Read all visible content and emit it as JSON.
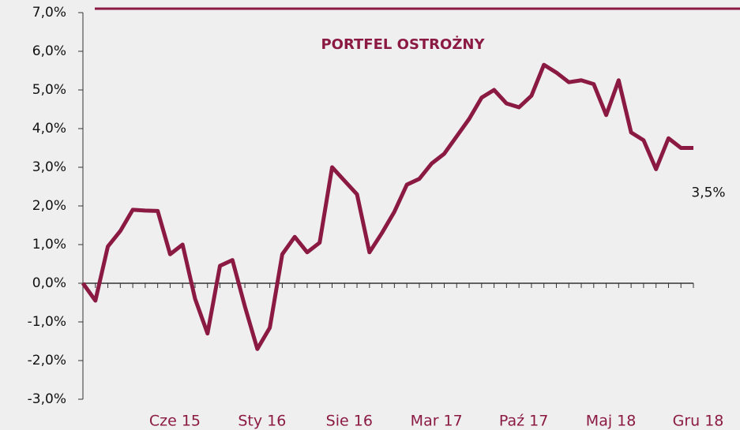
{
  "chart_data": {
    "type": "line",
    "title": "PORTFEL OSTROŻNY",
    "categories": [
      null,
      null,
      null,
      null,
      null,
      null,
      null,
      "Cze 15",
      null,
      null,
      null,
      null,
      null,
      null,
      "Sty 16",
      null,
      null,
      null,
      null,
      null,
      null,
      "Sie 16",
      null,
      null,
      null,
      null,
      null,
      null,
      "Mar 17",
      null,
      null,
      null,
      null,
      null,
      null,
      "Paź 17",
      null,
      null,
      null,
      null,
      null,
      null,
      "Maj 18",
      null,
      null,
      null,
      null,
      null,
      null,
      "Gru 18"
    ],
    "series": [
      {
        "name": "PORTFEL OSTROŻNY",
        "color": "#8b1a42",
        "values": [
          0,
          -0.45,
          0.95,
          1.35,
          1.9,
          1.88,
          1.87,
          0.75,
          1.0,
          -0.4,
          -1.3,
          0.45,
          0.6,
          -0.6,
          -1.7,
          -1.15,
          0.75,
          1.2,
          0.8,
          1.05,
          3.0,
          2.65,
          2.3,
          0.8,
          1.3,
          1.85,
          2.55,
          2.7,
          3.1,
          3.35,
          3.8,
          4.25,
          4.8,
          5.0,
          4.65,
          4.55,
          4.85,
          5.65,
          5.45,
          5.2,
          5.25,
          5.15,
          4.35,
          5.25,
          3.9,
          3.7,
          2.95,
          3.75,
          3.5,
          3.5
        ]
      }
    ],
    "end_label": "3,5%",
    "ylim": [
      -3,
      7
    ],
    "yticks": [
      {
        "value": -3,
        "label": "-3,0%"
      },
      {
        "value": -2,
        "label": "-2,0%"
      },
      {
        "value": -1,
        "label": "-1,0%"
      },
      {
        "value": 0,
        "label": "0,0%"
      },
      {
        "value": 1,
        "label": "1,0%"
      },
      {
        "value": 2,
        "label": "2,0%"
      },
      {
        "value": 3,
        "label": "3,0%"
      },
      {
        "value": 4,
        "label": "4,0%"
      },
      {
        "value": 5,
        "label": "5,0%"
      },
      {
        "value": 6,
        "label": "6,0%"
      },
      {
        "value": 7,
        "label": "7,0%"
      }
    ],
    "grid": false
  }
}
